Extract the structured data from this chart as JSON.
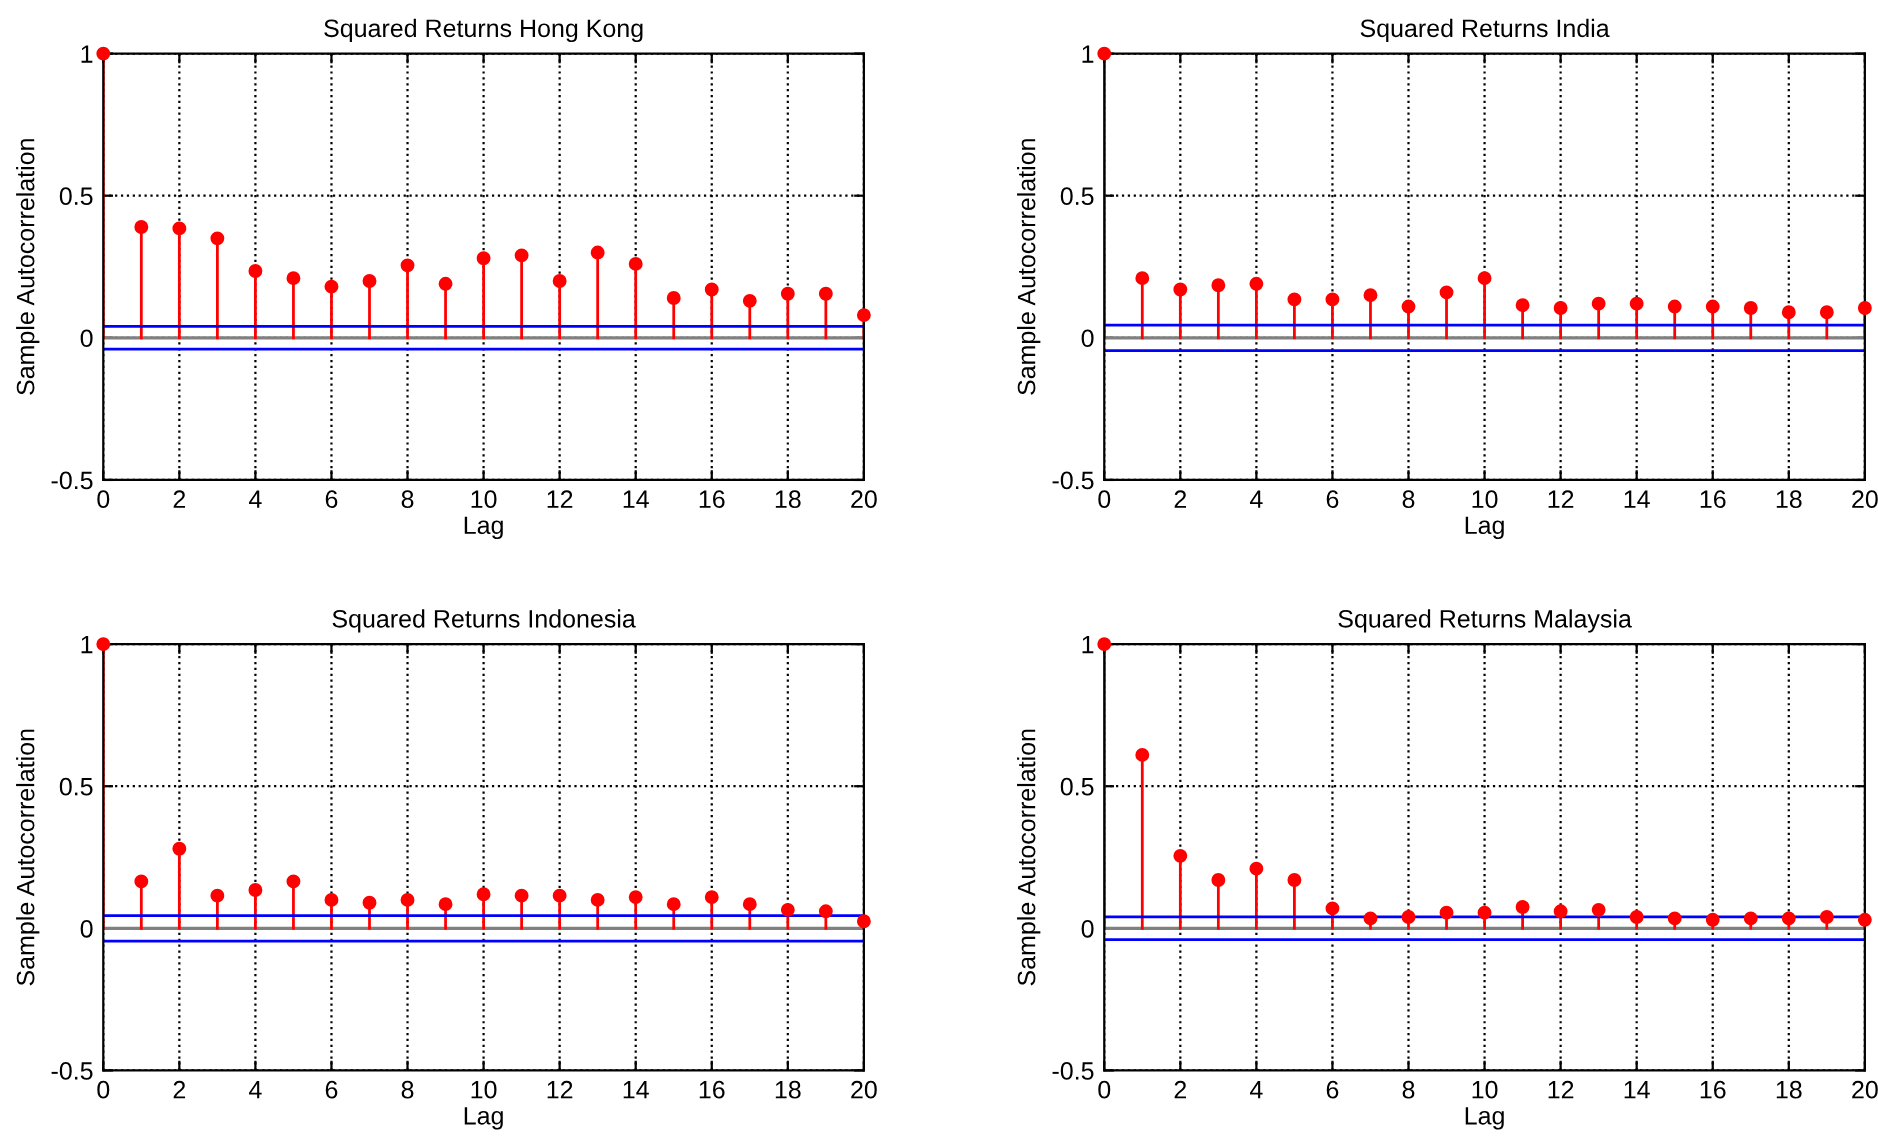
{
  "chart_data": [
    {
      "type": "lollipop",
      "title": "Squared Returns Hong Kong",
      "xlabel": "Lag",
      "ylabel": "Sample Autocorrelation",
      "x": [
        0,
        1,
        2,
        3,
        4,
        5,
        6,
        7,
        8,
        9,
        10,
        11,
        12,
        13,
        14,
        15,
        16,
        17,
        18,
        19,
        20
      ],
      "series": [
        {
          "color": "#ff0000",
          "values": [
            1,
            0.39,
            0.385,
            0.35,
            0.235,
            0.21,
            0.18,
            0.2,
            0.255,
            0.19,
            0.28,
            0.29,
            0.2,
            0.3,
            0.26,
            0.14,
            0.17,
            0.13,
            0.155,
            0.155,
            0.08
          ]
        }
      ],
      "xlim": [
        0,
        20
      ],
      "xticks": [
        0,
        2,
        4,
        6,
        8,
        10,
        12,
        14,
        16,
        18,
        20
      ],
      "ylim": [
        -0.5,
        1
      ],
      "yticks": [
        -0.5,
        0,
        0.5,
        1
      ],
      "grid": true,
      "marker": "circle",
      "ref_lines": [
        {
          "axis": "y",
          "value": 0.04,
          "color": "#0000ff"
        },
        {
          "axis": "y",
          "value": -0.04,
          "color": "#0000ff"
        }
      ]
    },
    {
      "type": "lollipop",
      "title": "Squared Returns India",
      "xlabel": "Lag",
      "ylabel": "Sample Autocorrelation",
      "x": [
        0,
        1,
        2,
        3,
        4,
        5,
        6,
        7,
        8,
        9,
        10,
        11,
        12,
        13,
        14,
        15,
        16,
        17,
        18,
        19,
        20
      ],
      "series": [
        {
          "color": "#ff0000",
          "values": [
            1,
            0.21,
            0.17,
            0.185,
            0.19,
            0.135,
            0.135,
            0.15,
            0.11,
            0.16,
            0.21,
            0.115,
            0.105,
            0.12,
            0.12,
            0.11,
            0.11,
            0.105,
            0.09,
            0.09,
            0.105
          ]
        }
      ],
      "xlim": [
        0,
        20
      ],
      "xticks": [
        0,
        2,
        4,
        6,
        8,
        10,
        12,
        14,
        16,
        18,
        20
      ],
      "ylim": [
        -0.5,
        1
      ],
      "yticks": [
        -0.5,
        0,
        0.5,
        1
      ],
      "grid": true,
      "marker": "circle",
      "ref_lines": [
        {
          "axis": "y",
          "value": 0.045,
          "color": "#0000ff"
        },
        {
          "axis": "y",
          "value": -0.045,
          "color": "#0000ff"
        }
      ]
    },
    {
      "type": "lollipop",
      "title": "Squared Returns Indonesia",
      "xlabel": "Lag",
      "ylabel": "Sample Autocorrelation",
      "x": [
        0,
        1,
        2,
        3,
        4,
        5,
        6,
        7,
        8,
        9,
        10,
        11,
        12,
        13,
        14,
        15,
        16,
        17,
        18,
        19,
        20
      ],
      "series": [
        {
          "color": "#ff0000",
          "values": [
            1,
            0.165,
            0.28,
            0.115,
            0.135,
            0.165,
            0.1,
            0.09,
            0.1,
            0.085,
            0.12,
            0.115,
            0.115,
            0.1,
            0.11,
            0.085,
            0.11,
            0.085,
            0.065,
            0.06,
            0.025
          ]
        }
      ],
      "xlim": [
        0,
        20
      ],
      "xticks": [
        0,
        2,
        4,
        6,
        8,
        10,
        12,
        14,
        16,
        18,
        20
      ],
      "ylim": [
        -0.5,
        1
      ],
      "yticks": [
        -0.5,
        0,
        0.5,
        1
      ],
      "grid": true,
      "marker": "circle",
      "ref_lines": [
        {
          "axis": "y",
          "value": 0.045,
          "color": "#0000ff"
        },
        {
          "axis": "y",
          "value": -0.045,
          "color": "#0000ff"
        }
      ]
    },
    {
      "type": "lollipop",
      "title": "Squared Returns Malaysia",
      "xlabel": "Lag",
      "ylabel": "Sample Autocorrelation",
      "x": [
        0,
        1,
        2,
        3,
        4,
        5,
        6,
        7,
        8,
        9,
        10,
        11,
        12,
        13,
        14,
        15,
        16,
        17,
        18,
        19,
        20
      ],
      "series": [
        {
          "color": "#ff0000",
          "values": [
            1,
            0.61,
            0.255,
            0.17,
            0.21,
            0.17,
            0.07,
            0.035,
            0.04,
            0.055,
            0.055,
            0.075,
            0.06,
            0.065,
            0.04,
            0.035,
            0.03,
            0.035,
            0.035,
            0.04,
            0.03
          ]
        }
      ],
      "xlim": [
        0,
        20
      ],
      "xticks": [
        0,
        2,
        4,
        6,
        8,
        10,
        12,
        14,
        16,
        18,
        20
      ],
      "ylim": [
        -0.5,
        1
      ],
      "yticks": [
        -0.5,
        0,
        0.5,
        1
      ],
      "grid": true,
      "marker": "circle",
      "ref_lines": [
        {
          "axis": "y",
          "value": 0.04,
          "color": "#0000ff"
        },
        {
          "axis": "y",
          "value": -0.04,
          "color": "#0000ff"
        }
      ]
    }
  ]
}
